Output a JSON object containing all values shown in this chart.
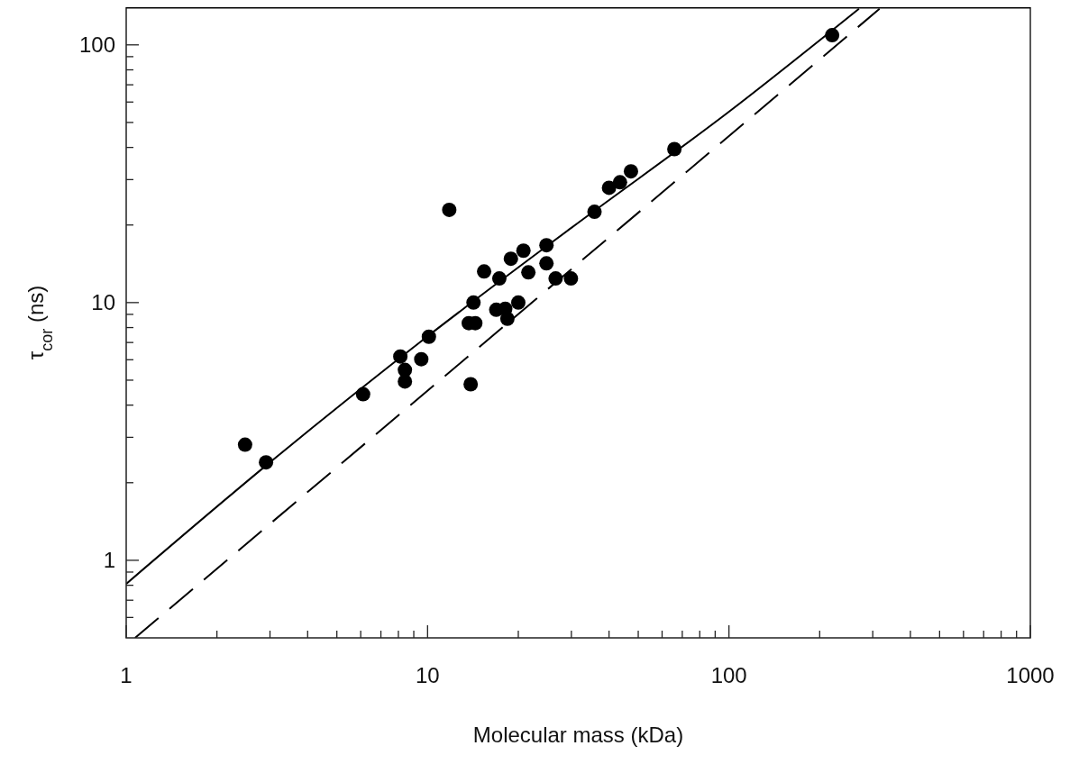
{
  "chart_data": {
    "type": "scatter",
    "xlabel": "Molecular mass (kDa)",
    "ylabel": "τ$_{cor}$ (ns)",
    "log": "xy",
    "grid": false,
    "xlim": [
      1,
      1000
    ],
    "ylim": [
      0.5,
      140
    ],
    "xticks": [
      1,
      {
        "value": 2,
        "label": null
      },
      {
        "value": 3,
        "label": null
      },
      {
        "value": 4,
        "label": null
      },
      {
        "value": 5,
        "label": null
      },
      {
        "value": 6,
        "label": null
      },
      {
        "value": 7,
        "label": null
      },
      {
        "value": 8,
        "label": null
      },
      {
        "value": 9,
        "label": null
      },
      10,
      {
        "value": 20,
        "label": null
      },
      {
        "value": 30,
        "label": null
      },
      {
        "value": 40,
        "label": null
      },
      {
        "value": 50,
        "label": null
      },
      {
        "value": 60,
        "label": null
      },
      {
        "value": 70,
        "label": null
      },
      {
        "value": 80,
        "label": null
      },
      {
        "value": 90,
        "label": null
      },
      100,
      {
        "value": 200,
        "label": null
      },
      {
        "value": 300,
        "label": null
      },
      {
        "value": 400,
        "label": null
      },
      {
        "value": 500,
        "label": null
      },
      {
        "value": 600,
        "label": null
      },
      {
        "value": 700,
        "label": null
      },
      {
        "value": 800,
        "label": null
      },
      {
        "value": 900,
        "label": null
      },
      1000
    ],
    "yticks": [
      {
        "value": 0.6,
        "label": null
      },
      {
        "value": 0.7,
        "label": null
      },
      {
        "value": 0.8,
        "label": null
      },
      {
        "value": 0.9,
        "label": null
      },
      1,
      {
        "value": 2,
        "label": null
      },
      {
        "value": 3,
        "label": null
      },
      {
        "value": 4,
        "label": null
      },
      {
        "value": 5,
        "label": null
      },
      {
        "value": 6,
        "label": null
      },
      {
        "value": 7,
        "label": null
      },
      {
        "value": 8,
        "label": null
      },
      {
        "value": 9,
        "label": null
      },
      10,
      {
        "value": 20,
        "label": null
      },
      {
        "value": 30,
        "label": null
      },
      {
        "value": 40,
        "label": null
      },
      {
        "value": 50,
        "label": null
      },
      {
        "value": 60,
        "label": null
      },
      {
        "value": 70,
        "label": null
      },
      {
        "value": 80,
        "label": null
      },
      {
        "value": 90,
        "label": null
      },
      100
    ],
    "series": [
      {
        "color": "#000000",
        "marker": "circle",
        "x": [
          2.48,
          2.91,
          6.11,
          8.12,
          8.41,
          8.41,
          9.53,
          10.1,
          11.8,
          13.9,
          14.2,
          13.7,
          14.4,
          15.4,
          17.3,
          16.9,
          18.4,
          18.1,
          20.0,
          18.9,
          20.8,
          21.6,
          24.8,
          24.8,
          26.6,
          29.9,
          35.8,
          40.0,
          43.5,
          47.3,
          65.9,
          220
        ],
        "values": [
          2.81,
          2.4,
          4.41,
          6.18,
          5.48,
          4.94,
          6.03,
          7.37,
          22.9,
          4.82,
          10.0,
          8.32,
          8.32,
          13.2,
          12.4,
          9.38,
          8.65,
          9.46,
          10.0,
          14.8,
          15.9,
          13.1,
          16.7,
          14.2,
          12.4,
          12.4,
          22.5,
          27.9,
          29.3,
          32.3,
          39.4,
          109
        ]
      },
      {
        "type": "line",
        "color": "#000000",
        "line_style": "solid",
        "marker": "none",
        "x": [
          1,
          3,
          10,
          30,
          100,
          270
        ],
        "values": [
          0.81,
          2.4,
          7.4,
          19.5,
          55,
          138
        ]
      },
      {
        "type": "line",
        "color": "#000000",
        "line_style": "dashed",
        "marker": "none",
        "x": [
          1.07,
          316
        ],
        "values": [
          0.5,
          138
        ]
      }
    ]
  }
}
